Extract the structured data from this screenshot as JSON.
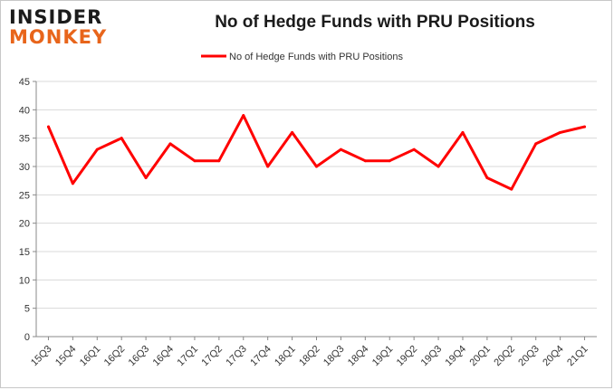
{
  "brand": {
    "line1": "INSIDER",
    "line2": "MONKEY"
  },
  "chart_data": {
    "type": "line",
    "title": "No of Hedge Funds with PRU Positions",
    "categories": [
      "15Q3",
      "15Q4",
      "16Q1",
      "16Q2",
      "16Q3",
      "16Q4",
      "17Q1",
      "17Q2",
      "17Q3",
      "17Q4",
      "18Q1",
      "18Q2",
      "18Q3",
      "18Q4",
      "19Q1",
      "19Q2",
      "19Q3",
      "19Q4",
      "20Q1",
      "20Q2",
      "20Q3",
      "20Q4",
      "21Q1"
    ],
    "series": [
      {
        "name": "No of Hedge Funds with PRU Positions",
        "color": "#ff0000",
        "values": [
          37,
          27,
          33,
          35,
          28,
          34,
          31,
          31,
          39,
          30,
          36,
          30,
          33,
          31,
          31,
          33,
          30,
          36,
          28,
          26,
          34,
          36,
          37
        ]
      }
    ],
    "ylim": [
      0,
      45
    ],
    "yticks": [
      0,
      5,
      10,
      15,
      20,
      25,
      30,
      35,
      40,
      45
    ],
    "grid": true,
    "legend": "top-center",
    "xlabel": "",
    "ylabel": ""
  }
}
